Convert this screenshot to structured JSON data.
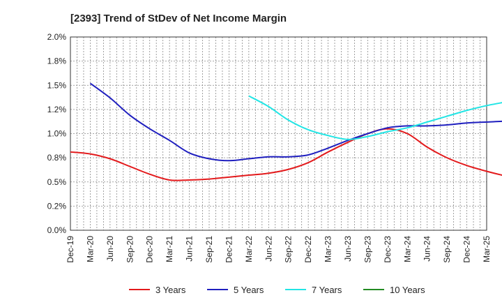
{
  "chart_data": {
    "type": "line",
    "title": "[2393]  Trend of StDev of Net Income Margin",
    "xlabel": "",
    "ylabel": "",
    "ylim": [
      0,
      0.02
    ],
    "y_ticks": [
      "0.0%",
      "0.2%",
      "0.5%",
      "0.8%",
      "1.0%",
      "1.2%",
      "1.5%",
      "1.8%",
      "2.0%"
    ],
    "x_ticks": [
      "Dec-19",
      "Mar-20",
      "Jun-20",
      "Sep-20",
      "Dec-20",
      "Mar-21",
      "Jun-21",
      "Sep-21",
      "Dec-21",
      "Mar-22",
      "Jun-22",
      "Sep-22",
      "Dec-22",
      "Mar-23",
      "Jun-23",
      "Sep-23",
      "Dec-23",
      "Mar-24",
      "Jun-24",
      "Sep-24",
      "Dec-24",
      "Mar-25"
    ],
    "grid": true,
    "legend_position": "bottom",
    "series": [
      {
        "name": "3 Years",
        "color": "#e31a1c",
        "values": [
          0.0081,
          0.0079,
          0.0074,
          0.0066,
          0.0058,
          0.0052,
          0.0052,
          0.0053,
          0.0055,
          0.0057,
          0.0059,
          0.0063,
          0.007,
          0.0081,
          0.0091,
          0.01,
          0.0105,
          0.01,
          0.0086,
          0.0075,
          0.0067,
          0.0061,
          0.0056,
          0.0052
        ]
      },
      {
        "name": "5 Years",
        "color": "#1f1fbf",
        "values": [
          null,
          0.0152,
          0.0137,
          0.0119,
          0.0105,
          0.0093,
          0.008,
          0.0074,
          0.0072,
          0.0074,
          0.0076,
          0.0076,
          0.0078,
          0.0085,
          0.0093,
          0.01,
          0.0106,
          0.0108,
          0.0108,
          0.0109,
          0.0111,
          0.0112,
          0.0113,
          0.0115
        ]
      },
      {
        "name": "7 Years",
        "color": "#22e5e5",
        "values": [
          null,
          null,
          null,
          null,
          null,
          null,
          null,
          null,
          null,
          0.0139,
          0.0128,
          0.0114,
          0.0104,
          0.0098,
          0.0094,
          0.0097,
          0.0102,
          0.0106,
          0.0112,
          0.0118,
          0.0124,
          0.0129,
          0.0133,
          0.0138
        ]
      },
      {
        "name": "10 Years",
        "color": "#228b22",
        "values": []
      }
    ]
  }
}
